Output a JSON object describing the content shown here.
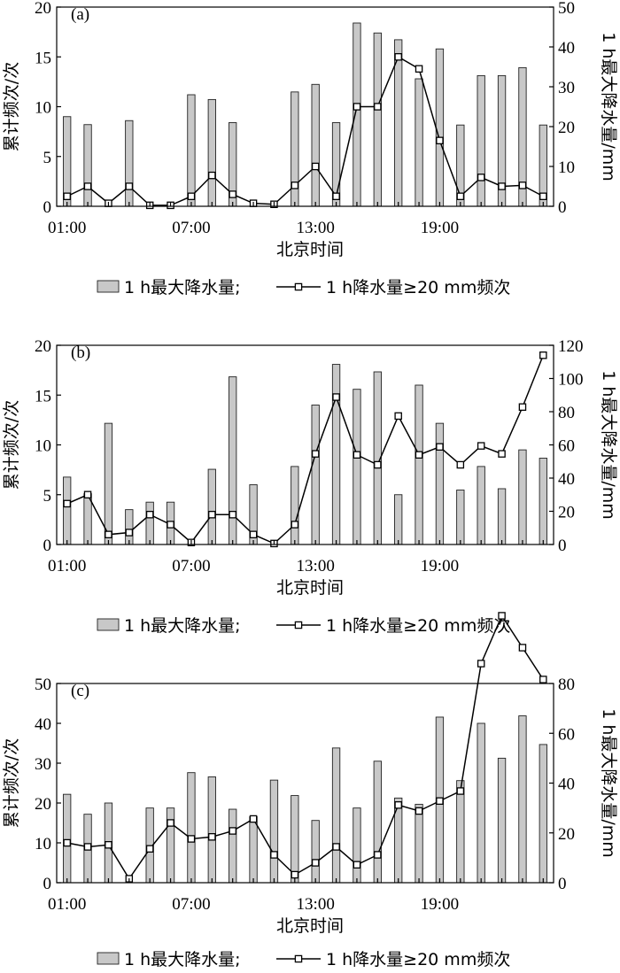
{
  "chart_data": [
    {
      "type": "bar",
      "panel_label": "(a)",
      "x": [
        "01:00",
        "02:00",
        "03:00",
        "04:00",
        "05:00",
        "06:00",
        "07:00",
        "08:00",
        "09:00",
        "10:00",
        "11:00",
        "12:00",
        "13:00",
        "14:00",
        "15:00",
        "16:00",
        "17:00",
        "18:00",
        "19:00",
        "20:00",
        "21:00",
        "22:00",
        "23:00",
        "24:00"
      ],
      "xticks": [
        "01:00",
        "07:00",
        "13:00",
        "19:00"
      ],
      "xlabel": "北京时间",
      "ylabel_left": "累计频次/次",
      "ylabel_right": "1 h最大降水量/mm",
      "ylim_left": [
        0,
        20
      ],
      "yticks_left": [
        0,
        5,
        10,
        15,
        20
      ],
      "ylim_right": [
        0,
        50
      ],
      "yticks_right": [
        0,
        10,
        20,
        30,
        40,
        50
      ],
      "series": [
        {
          "name": "1 h最大降水量",
          "kind": "bar",
          "axis": "right",
          "values": [
            22.5,
            20.5,
            0,
            21.5,
            0,
            0,
            28,
            26.8,
            21,
            0,
            0,
            28.7,
            30.6,
            21,
            46,
            43.5,
            41.8,
            32,
            39.5,
            20.4,
            32.8,
            32.8,
            34.8,
            20.4
          ]
        },
        {
          "name": "1 h降水量≥20 mm频次",
          "kind": "line",
          "axis": "left",
          "values": [
            1,
            2,
            0.3,
            2,
            0.1,
            0.1,
            1,
            3.1,
            1.2,
            0.3,
            0.2,
            2.1,
            4,
            1,
            10,
            10,
            15,
            13.8,
            6.6,
            1,
            2.9,
            2,
            2.1,
            1
          ]
        }
      ],
      "legend": {
        "bar_label": "1 h最大降水量;",
        "line_label": "1 h降水量≥20 mm频次"
      }
    },
    {
      "type": "bar",
      "panel_label": "(b)",
      "x": [
        "01:00",
        "02:00",
        "03:00",
        "04:00",
        "05:00",
        "06:00",
        "07:00",
        "08:00",
        "09:00",
        "10:00",
        "11:00",
        "12:00",
        "13:00",
        "14:00",
        "15:00",
        "16:00",
        "17:00",
        "18:00",
        "19:00",
        "20:00",
        "21:00",
        "22:00",
        "23:00",
        "24:00"
      ],
      "xticks": [
        "01:00",
        "07:00",
        "13:00",
        "19:00"
      ],
      "xlabel": "北京时间",
      "ylabel_left": "累计频次/次",
      "ylabel_right": "1 h最大降水量/mm",
      "ylim_left": [
        0,
        20
      ],
      "yticks_left": [
        0,
        5,
        10,
        15,
        20
      ],
      "ylim_right": [
        0,
        120
      ],
      "yticks_right": [
        0,
        20,
        40,
        60,
        80,
        100,
        120
      ],
      "series": [
        {
          "name": "1 h最大降水量",
          "kind": "bar",
          "axis": "right",
          "values": [
            40.6,
            30.6,
            73,
            21,
            25.5,
            25.5,
            0,
            45.3,
            101,
            36,
            0,
            47,
            84,
            108.5,
            93.5,
            104,
            30,
            96,
            73,
            32.8,
            47,
            33.6,
            57,
            52
          ]
        },
        {
          "name": "1 h降水量≥20 mm频次",
          "kind": "line",
          "axis": "left",
          "values": [
            4.1,
            5,
            1,
            1.2,
            3,
            2,
            0.2,
            3,
            3,
            1,
            0.1,
            2,
            9.1,
            14.8,
            9,
            8,
            12.9,
            9,
            9.8,
            8,
            9.9,
            9.1,
            13.8,
            19
          ]
        }
      ],
      "legend": {
        "bar_label": "1 h最大降水量;",
        "line_label": "1 h降水量≥20 mm频次"
      }
    },
    {
      "type": "bar",
      "panel_label": "(c)",
      "x": [
        "01:00",
        "02:00",
        "03:00",
        "04:00",
        "05:00",
        "06:00",
        "07:00",
        "08:00",
        "09:00",
        "10:00",
        "11:00",
        "12:00",
        "13:00",
        "14:00",
        "15:00",
        "16:00",
        "17:00",
        "18:00",
        "19:00",
        "20:00",
        "21:00",
        "22:00",
        "23:00",
        "24:00"
      ],
      "xticks": [
        "01:00",
        "07:00",
        "13:00",
        "19:00"
      ],
      "xlabel": "北京时间",
      "ylabel_left": "累计频次/次",
      "ylabel_right": "1 h最大降水量/mm",
      "ylim_left": [
        0,
        50
      ],
      "yticks_left": [
        0,
        10,
        20,
        30,
        40,
        50
      ],
      "ylim_right": [
        0,
        80
      ],
      "yticks_right": [
        0,
        20,
        40,
        60,
        80
      ],
      "series": [
        {
          "name": "1 h最大降水量",
          "kind": "bar",
          "axis": "right",
          "values": [
            35.5,
            27.5,
            32,
            0,
            30,
            30,
            44.2,
            42.5,
            29.5,
            26.5,
            41.2,
            35,
            25,
            54.1,
            30,
            48.8,
            34,
            31.5,
            66.5,
            41,
            64,
            50,
            67,
            55.5
          ]
        },
        {
          "name": "1 h降水量≥20 mm频次",
          "kind": "line",
          "axis": "left",
          "values": [
            10,
            9,
            9.5,
            1,
            8.5,
            15,
            11,
            11.5,
            13,
            16,
            7,
            2,
            5,
            9,
            4.5,
            7,
            19.5,
            18,
            20.5,
            23,
            55,
            67,
            59,
            51
          ]
        }
      ],
      "legend": {
        "bar_label": "1 h最大降水量;",
        "line_label": "1 h降水量≥20 mm频次"
      }
    }
  ]
}
